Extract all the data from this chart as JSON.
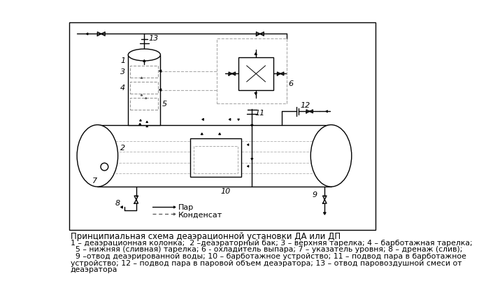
{
  "bg_color": "#ffffff",
  "line_color": "#000000",
  "dash_color": "#aaaaaa",
  "title": "Принципиальная схема деаэрационной установки ДА или ДП",
  "caption_lines": [
    "1 – деаэрационная колонка;  2 –деаэраторный бак; 3 – верхняя тарелка; 4 – барботажная тарелка;",
    "  5 – нижняя (сливная) тарелка; 6 - охладитель выпара; 7 – указатель уровня; 8 – дренаж (слив);",
    "  9 –отвод деаэрированной воды; 10 – барботажное устройство; 11 – подвод пара в барботажное",
    "устройство; 12 – подвод пара в паровой объем деаэратора; 13 – отвод паровоздушной смеси от",
    "деаэратора"
  ],
  "legend_par": "Пар",
  "legend_cond": "Конденсат"
}
